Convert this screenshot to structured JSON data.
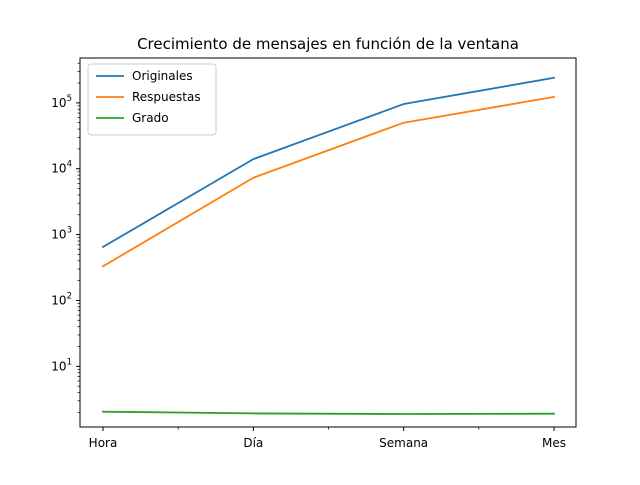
{
  "chart_data": {
    "type": "line",
    "title": "Crecimiento de mensajes en función de la ventana",
    "xlabel": "",
    "ylabel": "",
    "categories": [
      "Hora",
      "Día",
      "Semana",
      "Mes"
    ],
    "yscale": "log",
    "ylim": [
      1.2,
      480000
    ],
    "y_ticks": [
      {
        "value": 10,
        "base": "10",
        "exp": "1"
      },
      {
        "value": 100,
        "base": "10",
        "exp": "2"
      },
      {
        "value": 1000,
        "base": "10",
        "exp": "3"
      },
      {
        "value": 10000,
        "base": "10",
        "exp": "4"
      },
      {
        "value": 100000,
        "base": "10",
        "exp": "5"
      }
    ],
    "grid": false,
    "legend_position": "upper-left",
    "series": [
      {
        "name": "Originales",
        "color": "#1f77b4",
        "values": [
          650,
          14000,
          96000,
          240000
        ]
      },
      {
        "name": "Respuestas",
        "color": "#ff7f0e",
        "values": [
          330,
          7300,
          50000,
          123000
        ]
      },
      {
        "name": "Grado",
        "color": "#2ca02c",
        "values": [
          2.05,
          1.93,
          1.89,
          1.91
        ]
      }
    ]
  }
}
